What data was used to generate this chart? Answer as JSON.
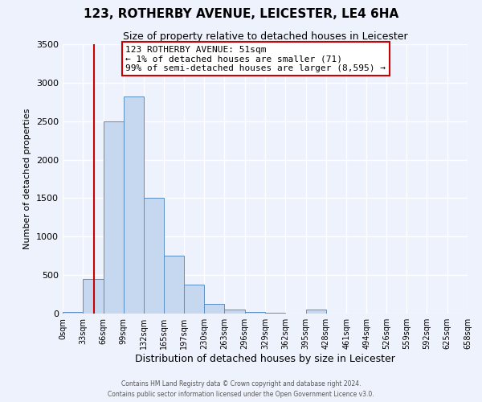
{
  "title": "123, ROTHERBY AVENUE, LEICESTER, LE4 6HA",
  "subtitle": "Size of property relative to detached houses in Leicester",
  "xlabel": "Distribution of detached houses by size in Leicester",
  "ylabel": "Number of detached properties",
  "bar_color": "#c5d8f0",
  "bar_edge_color": "#5b8ec4",
  "bin_edges": [
    0,
    33,
    66,
    99,
    132,
    165,
    197,
    230,
    263,
    296,
    329,
    362,
    395,
    428,
    461,
    494,
    526,
    559,
    592,
    625,
    658
  ],
  "bin_labels": [
    "0sqm",
    "33sqm",
    "66sqm",
    "99sqm",
    "132sqm",
    "165sqm",
    "197sqm",
    "230sqm",
    "263sqm",
    "296sqm",
    "329sqm",
    "362sqm",
    "395sqm",
    "428sqm",
    "461sqm",
    "494sqm",
    "526sqm",
    "559sqm",
    "592sqm",
    "625sqm",
    "658sqm"
  ],
  "bar_heights": [
    20,
    450,
    2500,
    2820,
    1500,
    750,
    375,
    130,
    55,
    20,
    8,
    5,
    55,
    5,
    0,
    0,
    0,
    0,
    0,
    0
  ],
  "ylim": [
    0,
    3500
  ],
  "yticks": [
    0,
    500,
    1000,
    1500,
    2000,
    2500,
    3000,
    3500
  ],
  "property_line_x": 51,
  "annotation_title": "123 ROTHERBY AVENUE: 51sqm",
  "annotation_line1": "← 1% of detached houses are smaller (71)",
  "annotation_line2": "99% of semi-detached houses are larger (8,595) →",
  "footer_line1": "Contains HM Land Registry data © Crown copyright and database right 2024.",
  "footer_line2": "Contains public sector information licensed under the Open Government Licence v3.0.",
  "background_color": "#eef2fc",
  "grid_color": "#ffffff",
  "annotation_box_color": "#ffffff",
  "annotation_box_edge_color": "#cc0000",
  "red_line_color": "#cc0000"
}
